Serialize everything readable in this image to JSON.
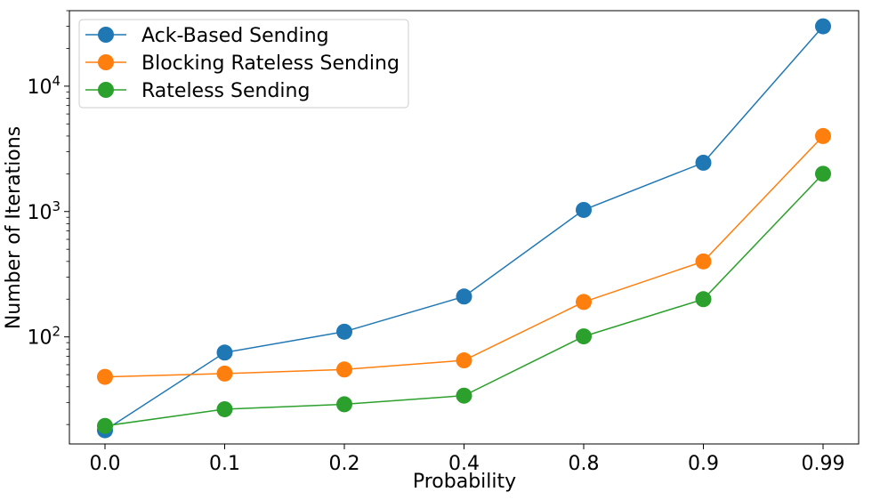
{
  "chart_data": {
    "type": "line",
    "title": "",
    "xlabel": "Probability",
    "ylabel": "Number of Iterations",
    "yscale": "log",
    "ylim": [
      14,
      40000
    ],
    "categories": [
      "0.0",
      "0.1",
      "0.2",
      "0.4",
      "0.8",
      "0.9",
      "0.99"
    ],
    "y_tick_values": [
      100,
      1000,
      10000
    ],
    "y_tick_labels": [
      {
        "base": "10",
        "exp": "2"
      },
      {
        "base": "10",
        "exp": "3"
      },
      {
        "base": "10",
        "exp": "4"
      }
    ],
    "grid": false,
    "legend_position": "top-left",
    "series": [
      {
        "name": "Ack-Based Sending",
        "color": "#1f77b4",
        "values": [
          18,
          75,
          110,
          210,
          1030,
          2450,
          30000
        ]
      },
      {
        "name": "Blocking Rateless Sending",
        "color": "#ff7f0e",
        "values": [
          48,
          51,
          55,
          65,
          190,
          400,
          4000
        ]
      },
      {
        "name": "Rateless Sending",
        "color": "#2ca02c",
        "values": [
          19.5,
          26.5,
          29,
          34,
          101,
          200,
          2000
        ]
      }
    ]
  }
}
